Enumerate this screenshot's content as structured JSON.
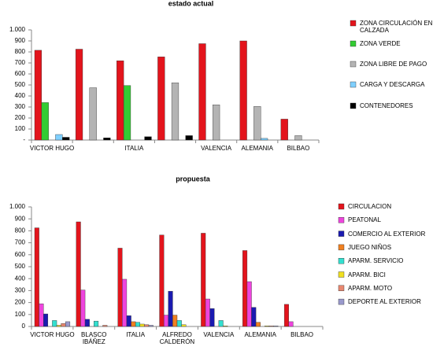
{
  "chart_data": [
    {
      "type": "bar",
      "title": "estado actual",
      "categories": [
        "VICTOR HUGO",
        null,
        "ITALIA",
        null,
        "VALENCIA",
        "ALEMANIA",
        "BILBAO"
      ],
      "series": [
        {
          "name": "ZONA CIRCULACIÓN EN CALZADA",
          "color": "#e3141c",
          "values": [
            815,
            825,
            720,
            755,
            875,
            900,
            190
          ]
        },
        {
          "name": "ZONA VERDE",
          "color": "#33cc33",
          "values": [
            340,
            0,
            495,
            0,
            0,
            0,
            0
          ]
        },
        {
          "name": "ZONA LIBRE DE PAGO",
          "color": "#b4b4b4",
          "values": [
            0,
            475,
            0,
            520,
            320,
            305,
            40
          ]
        },
        {
          "name": "CARGA Y DESCARGA",
          "color": "#7fd0ff",
          "values": [
            50,
            0,
            0,
            0,
            0,
            15,
            0
          ]
        },
        {
          "name": "CONTENEDORES",
          "color": "#000000",
          "values": [
            25,
            20,
            30,
            40,
            0,
            0,
            0
          ]
        }
      ],
      "ylim": [
        0,
        1000
      ],
      "yticks": [
        {
          "value": 0,
          "label": "-"
        },
        100,
        200,
        300,
        400,
        500,
        600,
        700,
        800,
        900,
        {
          "value": 1000,
          "label": "1.000"
        }
      ],
      "grid": false
    },
    {
      "type": "bar",
      "title": "propuesta",
      "categories": [
        "VICTOR HUGO",
        "BLASCO IBÁÑEZ",
        "ITALIA",
        "ALFREDO CALDERÓN",
        "VALENCIA",
        "ALEMANIA",
        "BILBAO"
      ],
      "series": [
        {
          "name": "CIRCULACION",
          "color": "#e3141c",
          "values": [
            825,
            875,
            655,
            765,
            780,
            635,
            185
          ]
        },
        {
          "name": "PEATONAL",
          "color": "#ee44dd",
          "values": [
            190,
            305,
            395,
            95,
            230,
            375,
            40
          ]
        },
        {
          "name": "COMERCIO AL EXTERIOR",
          "color": "#1a1ab0",
          "values": [
            105,
            60,
            90,
            295,
            150,
            160,
            0
          ]
        },
        {
          "name": "JUEGO NIÑOS",
          "color": "#f08020",
          "values": [
            0,
            0,
            40,
            95,
            0,
            35,
            0
          ]
        },
        {
          "name": "APARM. SERVICIO",
          "color": "#33e0d0",
          "values": [
            50,
            45,
            35,
            50,
            50,
            0,
            0
          ]
        },
        {
          "name": "APARM. BICI",
          "color": "#f0e020",
          "values": [
            10,
            0,
            20,
            15,
            5,
            5,
            0
          ]
        },
        {
          "name": "APARM. MOTO",
          "color": "#e88870",
          "values": [
            25,
            10,
            15,
            0,
            0,
            5,
            0
          ]
        },
        {
          "name": "DEPORTE AL EXTERIOR",
          "color": "#9999cc",
          "values": [
            40,
            0,
            10,
            0,
            0,
            5,
            0
          ]
        }
      ],
      "ylim": [
        0,
        1000
      ],
      "yticks": [
        0,
        100,
        200,
        300,
        400,
        500,
        600,
        700,
        800,
        900,
        {
          "value": 1000,
          "label": "1.000"
        }
      ],
      "grid": false
    }
  ]
}
